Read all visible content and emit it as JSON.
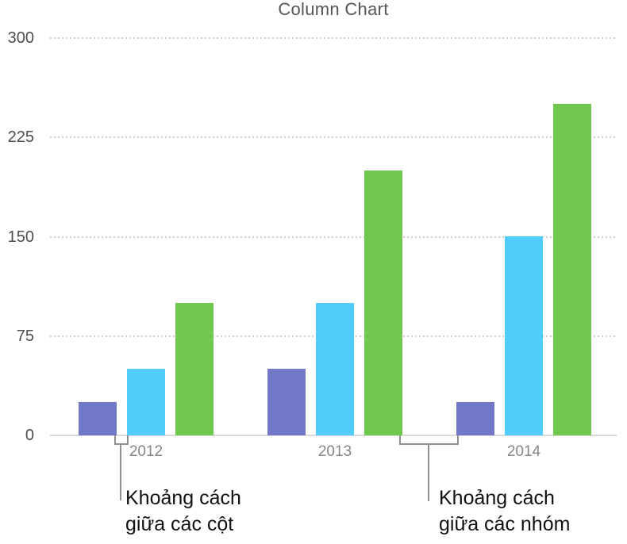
{
  "title": "Column Chart",
  "chart_data": {
    "type": "bar",
    "title": "Column Chart",
    "xlabel": "",
    "ylabel": "",
    "categories": [
      "2012",
      "2013",
      "2014"
    ],
    "series": [
      {
        "name": "series-1-purple",
        "color": "#7178C8",
        "values": [
          25,
          50,
          25
        ]
      },
      {
        "name": "series-2-blue",
        "color": "#51CDFA",
        "values": [
          50,
          100,
          150
        ]
      },
      {
        "name": "series-3-green",
        "color": "#70C84F",
        "values": [
          100,
          200,
          250
        ]
      }
    ],
    "ylim": [
      0,
      300
    ],
    "yticks": [
      0,
      75,
      150,
      225,
      300
    ],
    "grid": "horizontal-dotted",
    "legend_position": "none"
  },
  "annotations": {
    "column_gap": {
      "line1": "Khoảng cách",
      "line2": "giữa các cột"
    },
    "group_gap": {
      "line1": "Khoảng cách",
      "line2": "giữa các nhóm"
    }
  },
  "colors": {
    "title_text": "#565656",
    "axis_labels": "#4d4d4d",
    "category_labels": "#868686",
    "gridline": "#cdcdcd",
    "axis_line": "#d9d9d9",
    "bracket": "#8f8f8f",
    "annotation_text": "#111111",
    "background": "#ffffff"
  }
}
